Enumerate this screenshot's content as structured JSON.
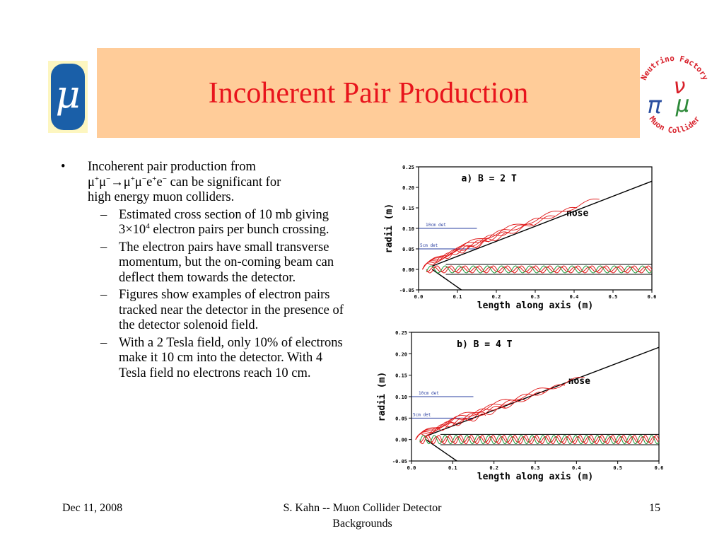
{
  "slide": {
    "title": "Incoherent Pair Production",
    "logo_left_symbol": "μ",
    "logo_right": {
      "top_text": "Neutrino Factory",
      "bottom_text": "Muon Collider",
      "letters": [
        "ν",
        "π",
        "μ"
      ]
    },
    "bullet": {
      "line1": "Incoherent pair production from",
      "line2_formula": "μ+μ−→μ+μ−e+e−",
      "line2_rest": " can be significant for",
      "line3": "high energy muon colliders."
    },
    "sub_bullets": [
      "Estimated cross section of 10 mb giving 3×104 electron pairs per bunch crossing.",
      "The electron pairs have small transverse momentum, but the on-coming beam can deflect them towards the detector.",
      "Figures show examples of electron pairs tracked near the detector in the presence of the detector solenoid field.",
      "With a 2 Tesla field, only 10% of electrons make it 10 cm into the detector.  With 4 Tesla field no electrons reach 10 cm."
    ],
    "sub1": {
      "before": "Estimated cross section of 10 mb giving 3×10",
      "exp": "4",
      "after": " electron pairs per bunch crossing."
    },
    "footer": {
      "date": "Dec 11, 2008",
      "author": "S. Kahn -- Muon Collider Detector Backgrounds",
      "page": "15"
    }
  },
  "chart_data": [
    {
      "type": "line",
      "title": "a) B = 2 T",
      "xlabel": "length along axis (m)",
      "ylabel": "radii (m)",
      "xlim": [
        0,
        0.6
      ],
      "ylim": [
        -0.05,
        0.25
      ],
      "xticks": [
        "0.0",
        "0.1",
        "0.2",
        "0.3",
        "0.4",
        "0.5",
        "0.6"
      ],
      "yticks": [
        "0.25",
        "0.20",
        "0.15",
        "0.10",
        "0.05",
        "0.00",
        "-0.05"
      ],
      "annotations": [
        "10cm det",
        "5cm det",
        "nose"
      ]
    },
    {
      "type": "line",
      "title": "b) B = 4 T",
      "xlabel": "length along axis (m)",
      "ylabel": "radii (m)",
      "xlim": [
        0,
        0.6
      ],
      "ylim": [
        -0.05,
        0.25
      ],
      "xticks": [
        "0.0",
        "0.1",
        "0.2",
        "0.3",
        "0.4",
        "0.5",
        "0.6"
      ],
      "yticks": [
        "0.25",
        "0.20",
        "0.15",
        "0.10",
        "0.05",
        "0.00",
        "-0.05"
      ],
      "annotations": [
        "10cm det",
        "5cm det",
        "nose"
      ]
    }
  ]
}
